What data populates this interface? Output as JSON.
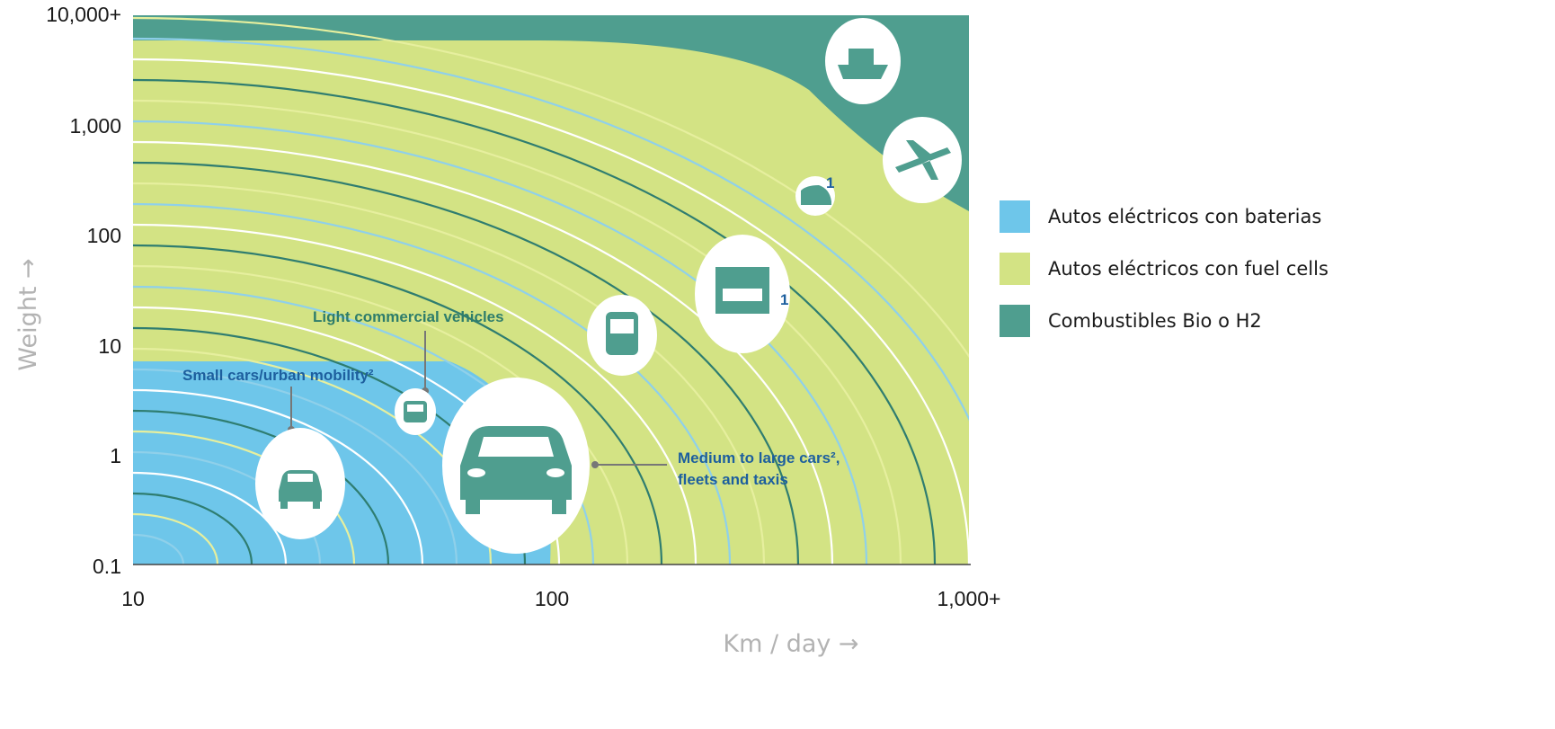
{
  "chart_data": {
    "type": "area",
    "title": "",
    "xlabel": "Km / day →",
    "ylabel": "Weight →",
    "x_scale": "log",
    "y_scale": "log",
    "xlim": [
      10,
      1000
    ],
    "ylim": [
      0.1,
      10000
    ],
    "x_ticks": [
      "10",
      "100",
      "1,000+"
    ],
    "y_ticks": [
      "10,000+",
      "1,000",
      "100",
      "10",
      "1",
      "0.1"
    ],
    "regions": [
      {
        "name": "Autos eléctricos con baterias",
        "color": "#6ec6ea"
      },
      {
        "name": "Autos eléctricos con fuel cells",
        "color": "#d3e384"
      },
      {
        "name": "Combustibles Bio o H2",
        "color": "#4f9e8f"
      }
    ],
    "annotations": [
      {
        "text": "Small cars/urban mobility²",
        "color": "#1d5f9e"
      },
      {
        "text": "Light commercial vehicles",
        "color": "#2e7d6b"
      },
      {
        "text": "Medium to large cars²,",
        "color": "#1d5f9e"
      },
      {
        "text": "fleets and taxis",
        "color": "#1d5f9e"
      }
    ],
    "icons": [
      "small-car-icon",
      "van-icon",
      "large-car-icon",
      "bus-icon",
      "truck-icon",
      "train-icon",
      "airplane-icon",
      "ship-icon"
    ],
    "footnote_markers": [
      "1",
      "1"
    ]
  }
}
